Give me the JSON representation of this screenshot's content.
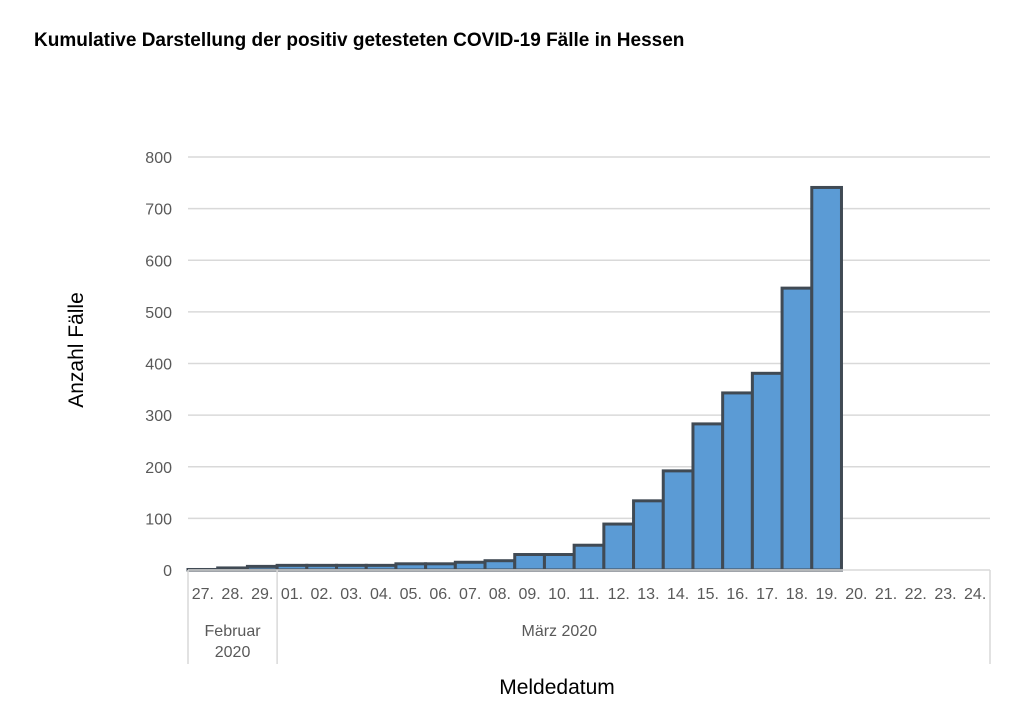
{
  "chart_data": {
    "type": "bar",
    "title": "Kumulative Darstellung der positiv getesteten COVID-19 Fälle in Hessen",
    "xlabel": "Meldedatum",
    "ylabel": "Anzahl Fälle",
    "ylim": [
      0,
      800
    ],
    "yticks": [
      0,
      100,
      200,
      300,
      400,
      500,
      600,
      700,
      800
    ],
    "grid": true,
    "categories": [
      "27.",
      "28.",
      "29.",
      "01.",
      "02.",
      "03.",
      "04.",
      "05.",
      "06.",
      "07.",
      "08.",
      "09.",
      "10.",
      "11.",
      "12.",
      "13.",
      "14.",
      "15.",
      "16.",
      "17.",
      "18.",
      "19.",
      "20.",
      "21.",
      "22.",
      "23.",
      "24."
    ],
    "category_groups": [
      {
        "label": "Februar 2020",
        "line1": "Februar",
        "line2": "2020",
        "count": 3
      },
      {
        "label": "März 2020",
        "count": 24
      }
    ],
    "values": [
      1,
      4,
      7,
      9,
      9,
      9,
      9,
      12,
      12,
      15,
      18,
      30,
      30,
      48,
      89,
      134,
      192,
      283,
      343,
      381,
      546,
      741,
      null,
      null,
      null,
      null,
      null
    ],
    "colors": {
      "bar_fill": "#5b9bd5",
      "bar_stroke": "#404a54",
      "grid": "#d9d9d9"
    }
  }
}
